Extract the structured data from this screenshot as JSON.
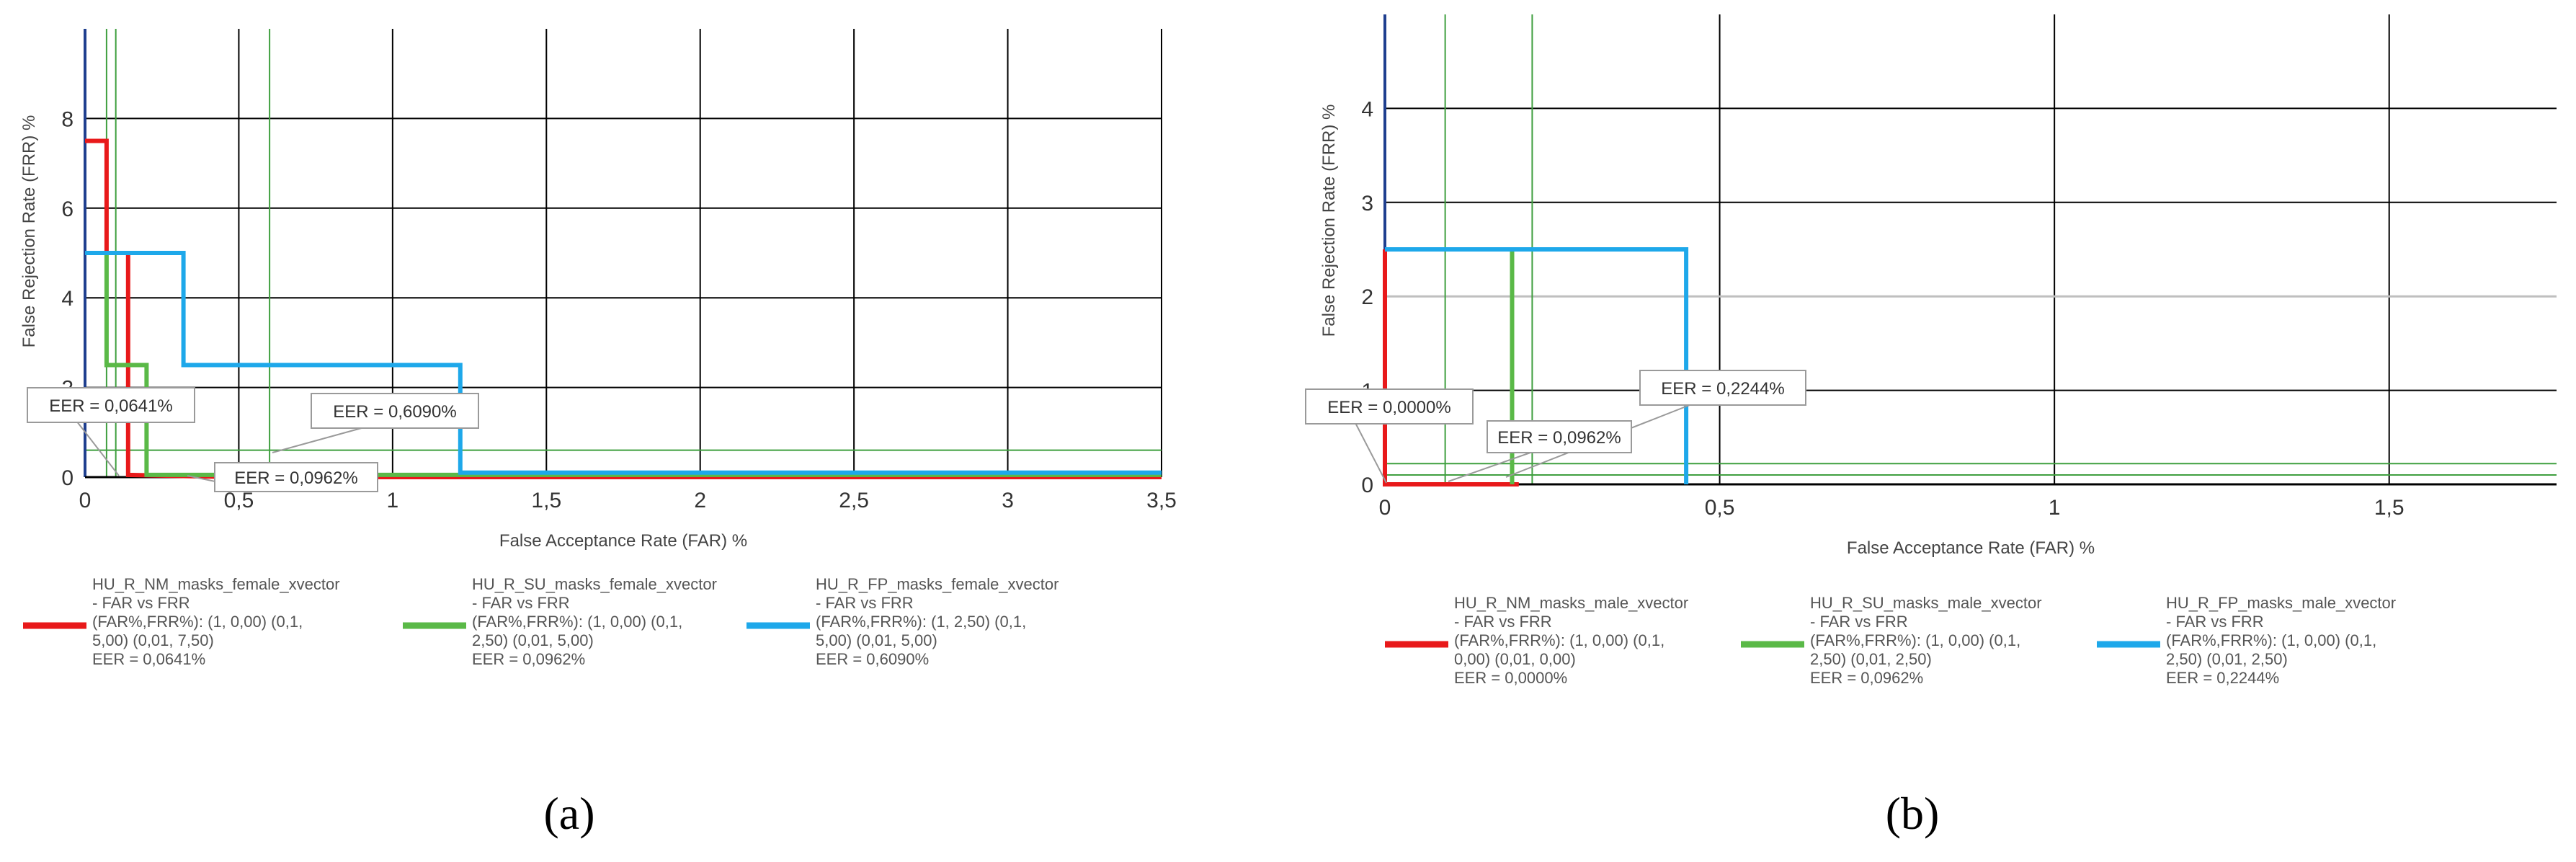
{
  "chart_data": [
    {
      "type": "line",
      "panel_label": "(a)",
      "xlabel": "False Acceptance Rate (FAR) %",
      "ylabel": "False Rejection Rate (FRR) %",
      "xlim": [
        0,
        3.5
      ],
      "ylim": [
        0,
        10
      ],
      "x_ticks": [
        0,
        0.5,
        1,
        1.5,
        2,
        2.5,
        3,
        3.5
      ],
      "x_tick_labels": [
        "0",
        "0,5",
        "1",
        "1,5",
        "2",
        "2,5",
        "3",
        "3,5"
      ],
      "y_ticks": [
        0,
        2,
        4,
        6,
        8
      ],
      "y_tick_labels": [
        "0",
        "2",
        "4",
        "6",
        "8"
      ],
      "grid": true,
      "legend_placement": "bottom",
      "series": [
        {
          "name": "HU_R_NM_masks_female_xvector",
          "legend_lines": [
            "HU_R_NM_masks_female_xvector",
            "- FAR vs FRR",
            "(FAR%,FRR%): (1, 0,00) (0,1,",
            "5,00) (0,01, 7,50)",
            "EER = 0,0641%"
          ],
          "color": "#e8191a",
          "points": [
            [
              0,
              7.5
            ],
            [
              0.07,
              7.5
            ],
            [
              0.07,
              5.0
            ],
            [
              0.14,
              5.0
            ],
            [
              0.14,
              0.05
            ],
            [
              0.5,
              0.0
            ],
            [
              3.5,
              0.0
            ]
          ],
          "eer_label": "EER = 0,0641%"
        },
        {
          "name": "HU_R_SU_masks_female_xvector",
          "legend_lines": [
            "HU_R_SU_masks_female_xvector",
            "- FAR vs FRR",
            "(FAR%,FRR%): (1, 0,00) (0,1,",
            "2,50) (0,01, 5,00)",
            "EER = 0,0962%"
          ],
          "color": "#5ab947",
          "points": [
            [
              0.07,
              5.0
            ],
            [
              0.07,
              2.5
            ],
            [
              0.2,
              2.5
            ],
            [
              0.2,
              0.05
            ],
            [
              3.5,
              0.05
            ]
          ],
          "eer_label": "EER = 0,0962%"
        },
        {
          "name": "HU_R_FP_masks_female_xvector",
          "legend_lines": [
            "HU_R_FP_masks_female_xvector",
            "- FAR vs FRR",
            "(FAR%,FRR%): (1, 2,50) (0,1,",
            "5,00) (0,01, 5,00)",
            "EER = 0,6090%"
          ],
          "color": "#1ea8ea",
          "points": [
            [
              0,
              5.0
            ],
            [
              0.32,
              5.0
            ],
            [
              0.32,
              2.5
            ],
            [
              1.22,
              2.5
            ],
            [
              1.22,
              0.1
            ],
            [
              3.5,
              0.1
            ]
          ],
          "eer_label": "EER = 0,6090%"
        }
      ],
      "reference_vlines": [
        0.07,
        0.1,
        0.6
      ],
      "reference_hlines": [
        0.6
      ],
      "reference_line_color": "#3f9f3f"
    },
    {
      "type": "line",
      "panel_label": "(b)",
      "xlabel": "False Acceptance Rate (FAR) %",
      "ylabel": "False Rejection Rate (FRR) %",
      "xlim": [
        0,
        1.75
      ],
      "ylim": [
        0,
        5
      ],
      "x_ticks": [
        0,
        0.5,
        1,
        1.5
      ],
      "x_tick_labels": [
        "0",
        "0,5",
        "1",
        "1,5"
      ],
      "y_ticks": [
        0,
        1,
        2,
        3,
        4
      ],
      "y_tick_labels": [
        "0",
        "1",
        "2",
        "3",
        "4"
      ],
      "grid": true,
      "legend_placement": "bottom",
      "series": [
        {
          "name": "HU_R_NM_masks_male_xvector",
          "legend_lines": [
            "HU_R_NM_masks_male_xvector",
            "- FAR vs FRR",
            "(FAR%,FRR%): (1, 0,00) (0,1,",
            "0,00) (0,01, 0,00)",
            "EER = 0,0000%"
          ],
          "color": "#e8191a",
          "points": [
            [
              0,
              2.5
            ],
            [
              0,
              0.0
            ],
            [
              0.2,
              0.0
            ]
          ],
          "eer_label": "EER = 0,0000%"
        },
        {
          "name": "HU_R_SU_masks_male_xvector",
          "legend_lines": [
            "HU_R_SU_masks_male_xvector",
            "- FAR vs FRR",
            "(FAR%,FRR%): (1, 0,00) (0,1,",
            "2,50) (0,01, 2,50)",
            "EER = 0,0962%"
          ],
          "color": "#5ab947",
          "points": [
            [
              0.0,
              2.5
            ],
            [
              0.19,
              2.5
            ],
            [
              0.19,
              0.0
            ]
          ],
          "eer_label": "EER = 0,0962%"
        },
        {
          "name": "HU_R_FP_masks_male_xvector",
          "legend_lines": [
            "HU_R_FP_masks_male_xvector",
            "- FAR vs FRR",
            "(FAR%,FRR%): (1, 0,00) (0,1,",
            "2,50) (0,01, 2,50)",
            "EER = 0,2244%"
          ],
          "color": "#1ea8ea",
          "points": [
            [
              0,
              2.5
            ],
            [
              0.45,
              2.5
            ],
            [
              0.45,
              0.0
            ]
          ],
          "eer_label": "EER = 0,2244%"
        }
      ],
      "reference_vlines": [
        0.09,
        0.22
      ],
      "reference_hlines": [
        0.1,
        0.22
      ],
      "reference_line_color": "#3f9f3f"
    }
  ]
}
